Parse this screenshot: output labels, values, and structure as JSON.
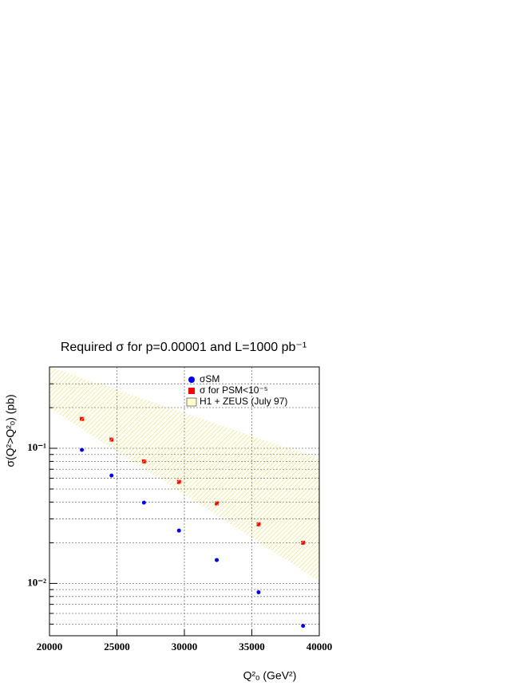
{
  "chart_data": {
    "type": "scatter",
    "title": "Required σ for p=0.00001 and L=1000 pb⁻¹",
    "xlabel": "Q²ₒ (GeV²)",
    "ylabel": "σ(Q²>Q²ₒ) (pb)",
    "xlim": [
      20000,
      40000
    ],
    "xticks": [
      20000,
      25000,
      30000,
      35000,
      40000
    ],
    "ylim": [
      0.0041,
      0.4
    ],
    "ylog": true,
    "yticks": [
      {
        "value": 0.01,
        "label": "10⁻²"
      },
      {
        "value": 0.1,
        "label": "10⁻¹"
      }
    ],
    "yminorticks": [
      0.005,
      0.006,
      0.007,
      0.008,
      0.009,
      0.02,
      0.03,
      0.04,
      0.05,
      0.06,
      0.07,
      0.08,
      0.09,
      0.2,
      0.3,
      0.4
    ],
    "grid": true,
    "legend": "top",
    "series": [
      {
        "name": "σSM",
        "color": "#0000ff",
        "marker": "circle",
        "x": [
          22400,
          24600,
          27000,
          29600,
          32400,
          35500,
          38800
        ],
        "values": [
          0.0973,
          0.0629,
          0.0396,
          0.0246,
          0.0149,
          0.0086,
          0.00485
        ]
      },
      {
        "name": "σ for PSM<10⁻⁵",
        "color": "#ff0000",
        "marker": "square",
        "x": [
          22400,
          24600,
          27000,
          29600,
          32400,
          35500,
          38800
        ],
        "values": [
          0.165,
          0.116,
          0.08,
          0.0564,
          0.0391,
          0.0274,
          0.02
        ]
      },
      {
        "name": "H1 + ZEUS (July 97)",
        "color": "#e8e060",
        "marker": "band",
        "x": [
          20000,
          40000
        ],
        "upper": [
          0.4,
          0.0838
        ],
        "lower": [
          0.198,
          0.0104
        ]
      }
    ]
  }
}
